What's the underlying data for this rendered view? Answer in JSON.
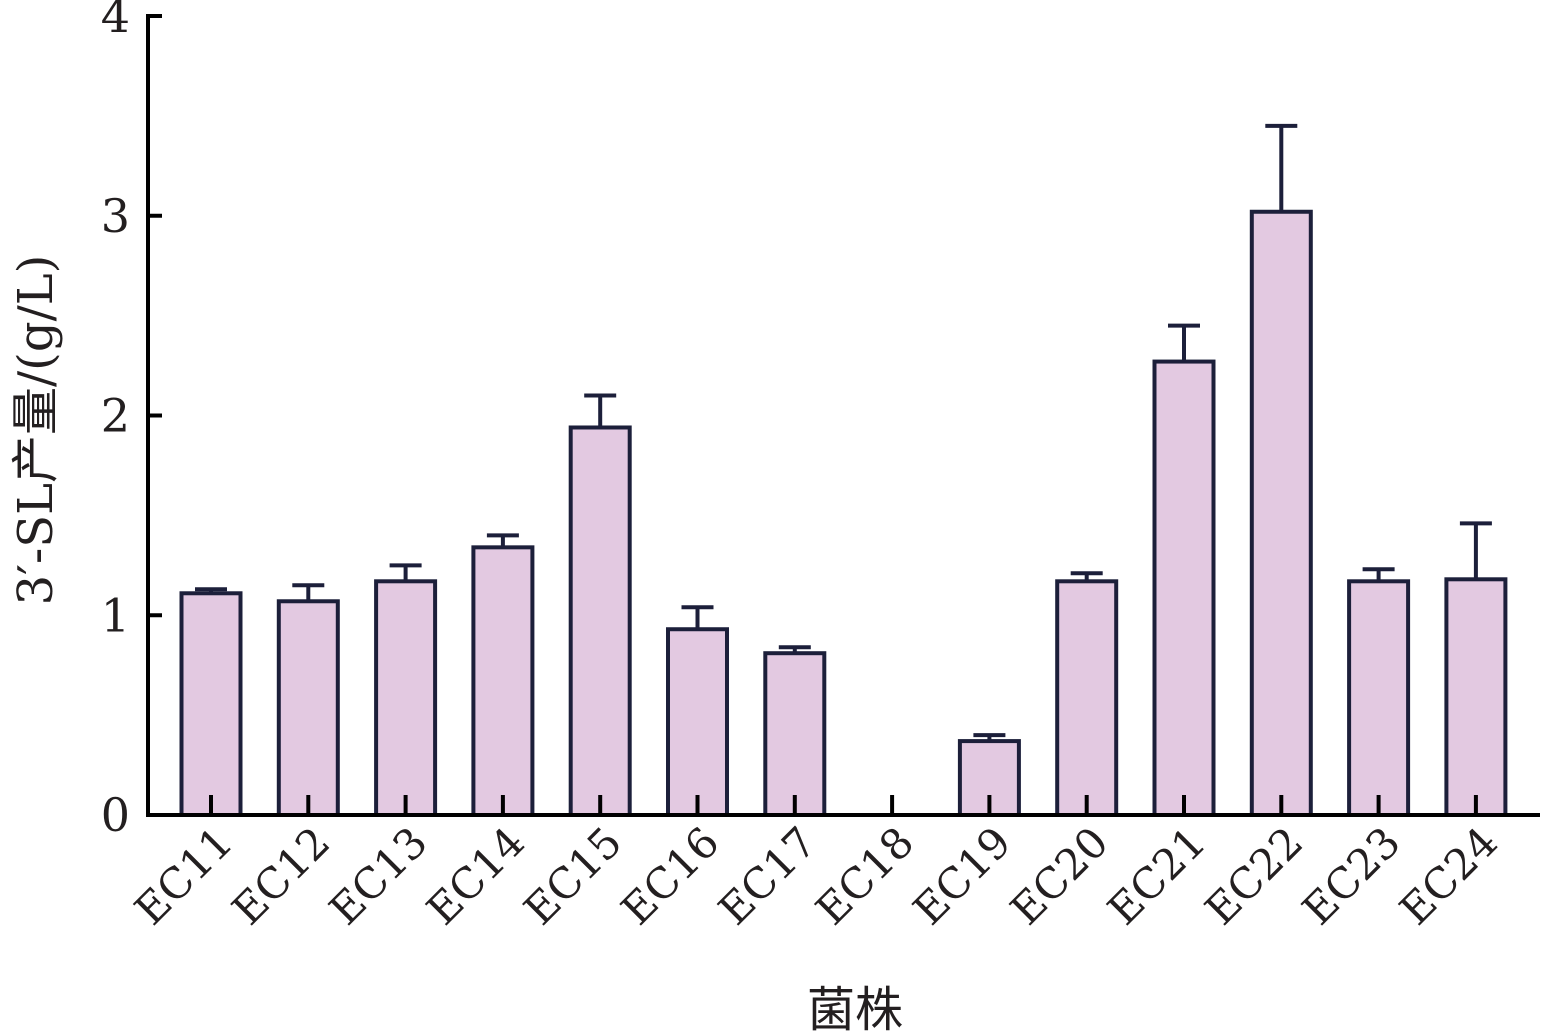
{
  "chart_data": {
    "type": "bar",
    "title": "",
    "xlabel": "菌株",
    "ylabel": "3′-SL产量/(g/L)",
    "ylim": [
      0,
      4
    ],
    "yticks": [
      "0",
      "1",
      "2",
      "3",
      "4"
    ],
    "grid": false,
    "legend": "none",
    "categories": [
      "EC11",
      "EC12",
      "EC13",
      "EC14",
      "EC15",
      "EC16",
      "EC17",
      "EC18",
      "EC19",
      "EC20",
      "EC21",
      "EC22",
      "EC23",
      "EC24"
    ],
    "values": [
      1.11,
      1.07,
      1.17,
      1.34,
      1.94,
      0.93,
      0.81,
      0,
      0.37,
      1.17,
      2.27,
      3.02,
      1.17,
      1.18
    ],
    "errors": [
      0.02,
      0.08,
      0.08,
      0.06,
      0.16,
      0.11,
      0.03,
      0,
      0.03,
      0.04,
      0.18,
      0.43,
      0.06,
      0.28
    ],
    "colors": {
      "bar_fill": "#e3c9e1",
      "bar_stroke": "#1c1f3a",
      "axis": "#000000"
    }
  }
}
